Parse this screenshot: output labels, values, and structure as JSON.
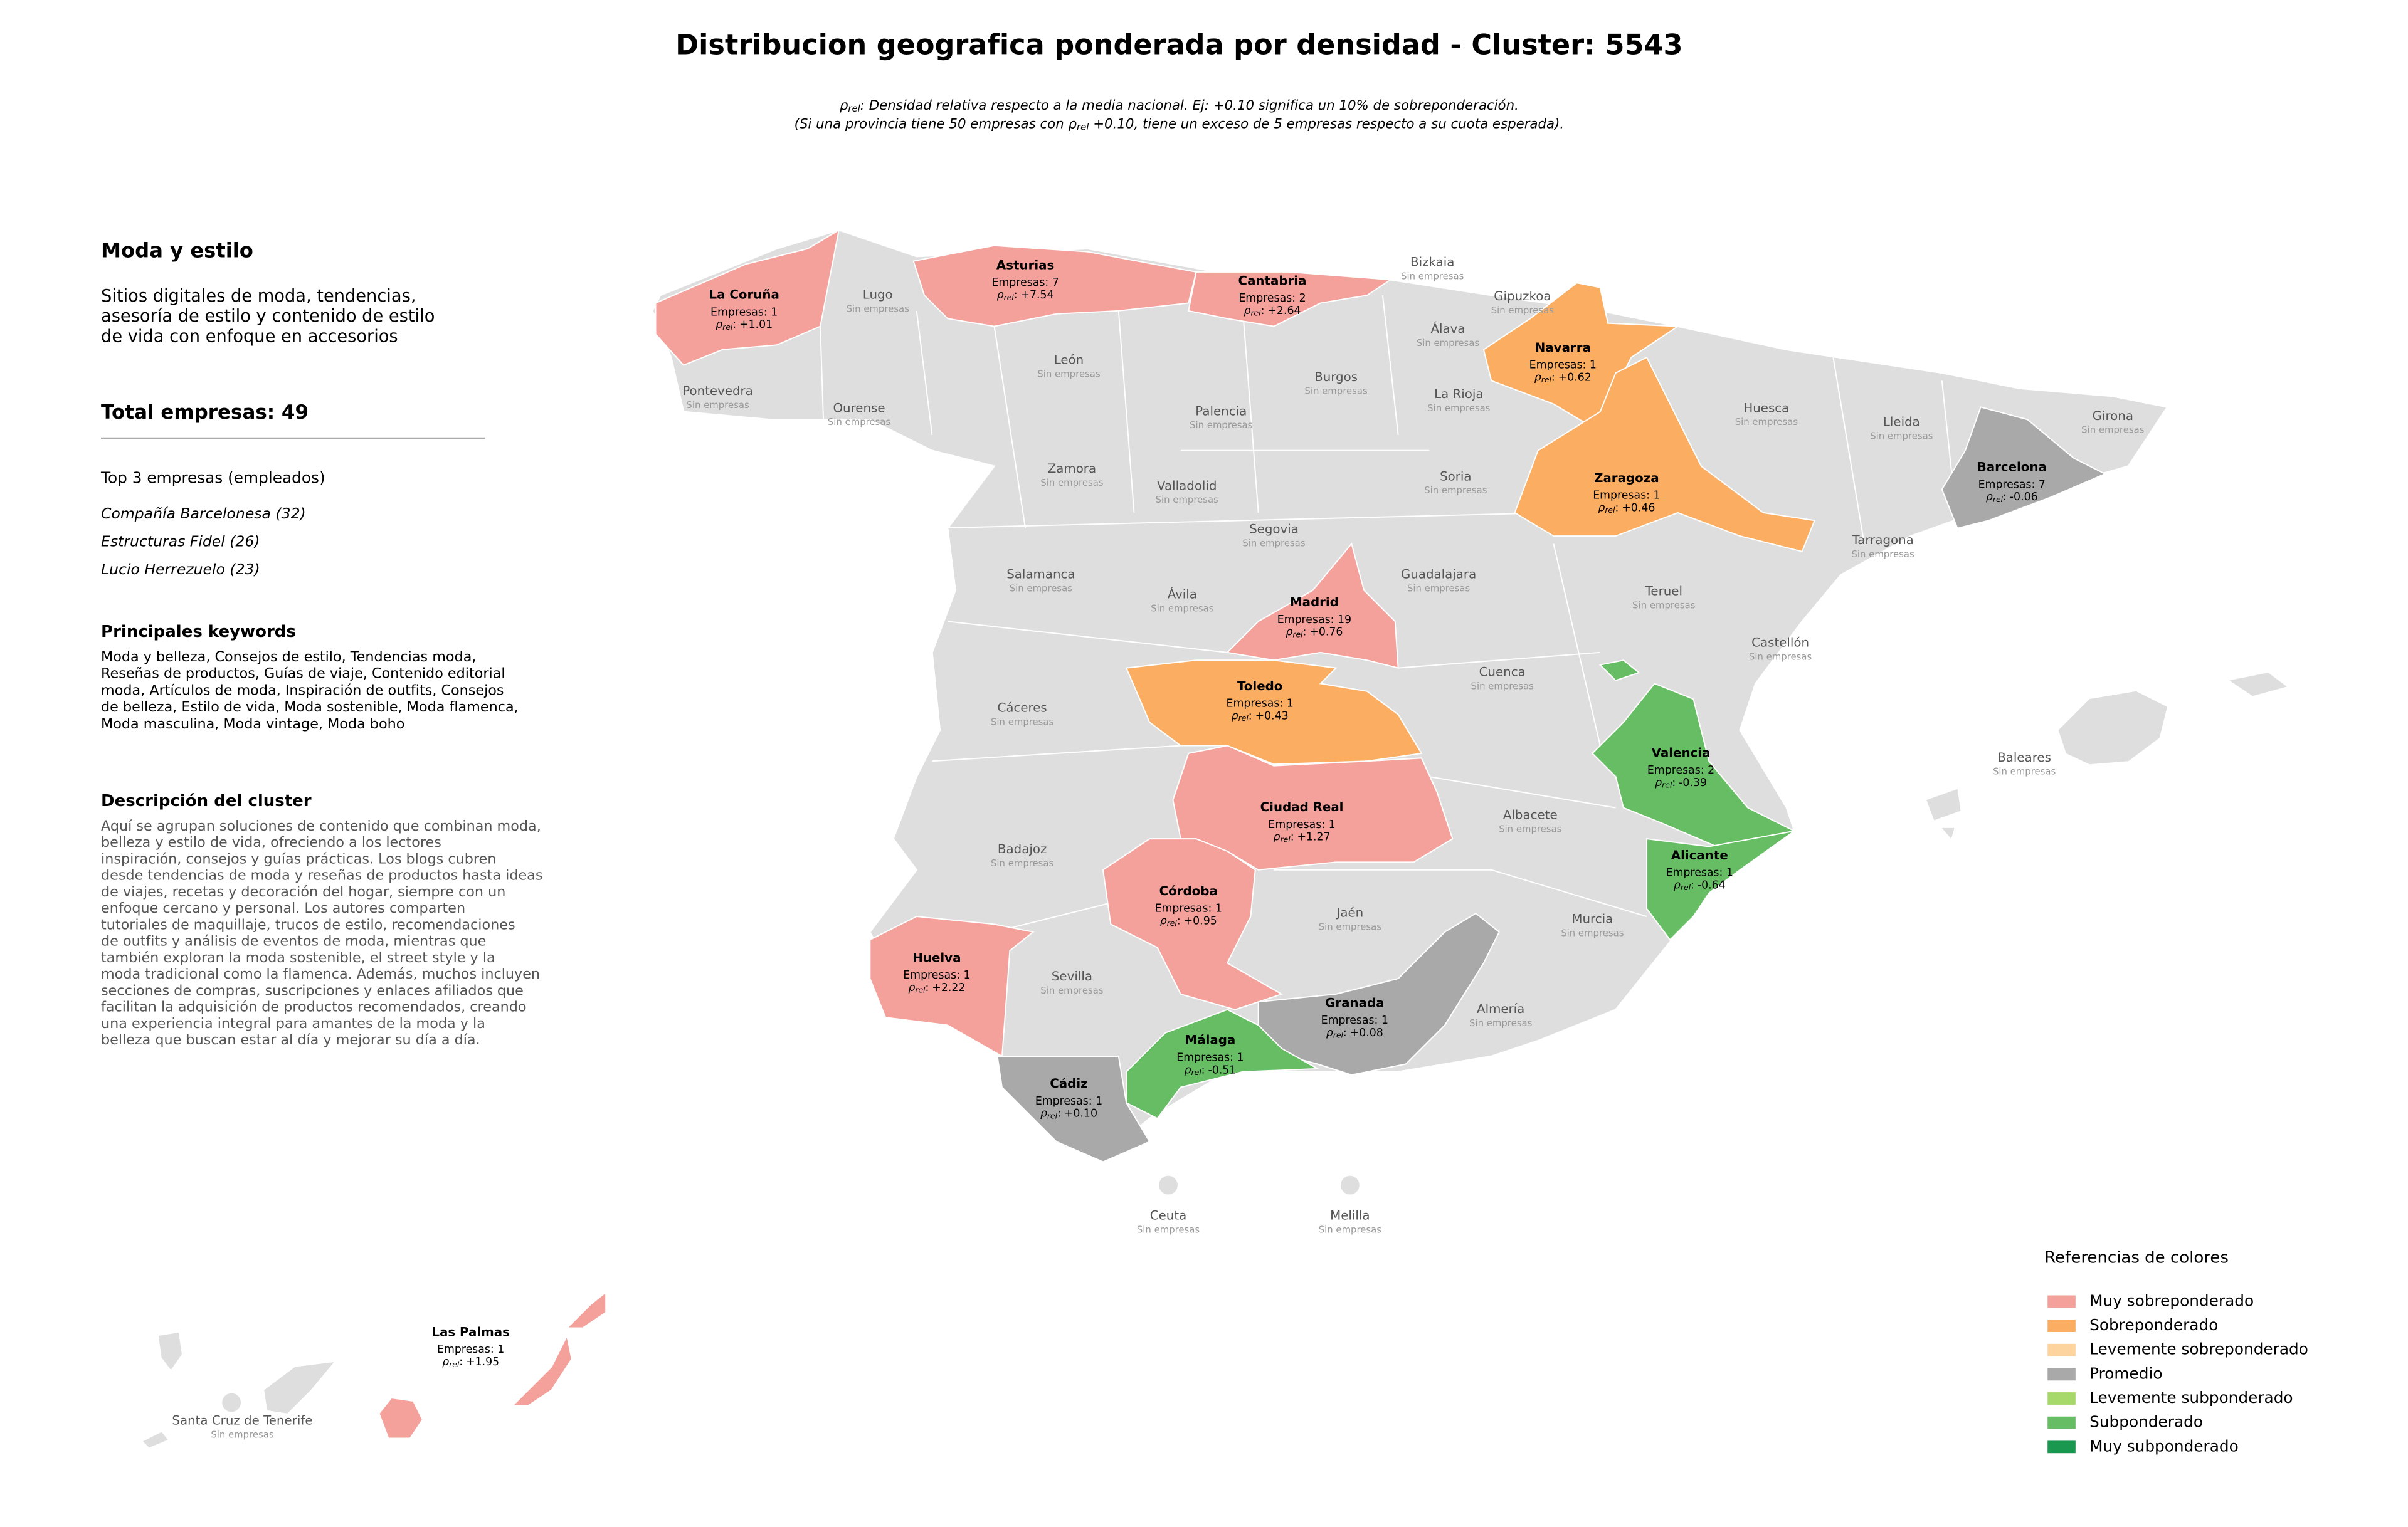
{
  "title": "Distribucion geografica ponderada por densidad - Cluster: 5543",
  "subtitle": [
    {
      "pre": "ρ",
      "sub": "rel",
      "post": ": Densidad relativa respecto a la media nacional. Ej: +0.10 significa un 10% de sobreponderación."
    },
    {
      "pre": "(Si una provincia tiene 50 empresas con ρ",
      "sub": "rel",
      "post": " +0.10, tiene un exceso de 5 empresas respecto a su cuota esperada)."
    }
  ],
  "sidebar": {
    "heading": "Moda y estilo",
    "description": [
      "Sitios digitales de moda, tendencias,",
      "asesoría de estilo y contenido de estilo",
      "de vida con enfoque en accesorios"
    ],
    "total": "Total empresas: 49",
    "top_heading": "Top 3 empresas (empleados)",
    "top": [
      "Compañía Barcelonesa (32)",
      "Estructuras Fidel (26)",
      "Lucio Herrezuelo (23)"
    ],
    "keywords_heading": "Principales keywords",
    "keywords": [
      "Moda y belleza, Consejos de estilo, Tendencias moda,",
      "Reseñas de productos, Guías de viaje, Contenido editorial",
      "moda, Artículos de moda, Inspiración de outfits, Consejos",
      "de belleza, Estilo de vida, Moda sostenible, Moda flamenca,",
      "Moda masculina, Moda vintage, Moda boho"
    ],
    "cluster_heading": "Descripción del cluster",
    "cluster_description": [
      "Aquí se agrupan soluciones de contenido que combinan moda,",
      "belleza y estilo de vida, ofreciendo a los lectores",
      "inspiración, consejos y guías prácticas. Los blogs cubren",
      "desde tendencias de moda y reseñas de productos hasta ideas",
      "de viajes, recetas y decoración del hogar, siempre con un",
      "enfoque cercano y personal. Los autores comparten",
      "tutoriales de maquillaje, trucos de estilo, recomendaciones",
      "de outfits y análisis de eventos de moda, mientras que",
      "también exploran la moda sostenible, el street style y la",
      "moda tradicional como la flamenca. Además, muchos incluyen",
      "secciones de compras, suscripciones y enlaces afiliados que",
      "facilitan la adquisición de productos recomendados, creando",
      "una experiencia integral para amantes de la moda y la",
      "belleza que buscan estar al día y mejorar su día a día."
    ]
  },
  "map": {
    "rho_symbol": "ρ",
    "rho_subscript": "rel",
    "rho_separator": ":",
    "no_data_label": "Sin empresas",
    "provinces": [
      {
        "name": "La Coruña",
        "companies": "Empresas: 1",
        "rho": "+1.01",
        "level": 0
      },
      {
        "name": "Asturias",
        "companies": "Empresas: 7",
        "rho": "+7.54",
        "level": 0
      },
      {
        "name": "Cantabria",
        "companies": "Empresas: 2",
        "rho": "+2.64",
        "level": 0
      },
      {
        "name": "Navarra",
        "companies": "Empresas: 1",
        "rho": "+0.62",
        "level": 1
      },
      {
        "name": "Zaragoza",
        "companies": "Empresas: 1",
        "rho": "+0.46",
        "level": 1
      },
      {
        "name": "Barcelona",
        "companies": "Empresas: 7",
        "rho": "-0.06",
        "level": 3
      },
      {
        "name": "Madrid",
        "companies": "Empresas: 19",
        "rho": "+0.76",
        "level": 0
      },
      {
        "name": "Toledo",
        "companies": "Empresas: 1",
        "rho": "+0.43",
        "level": 1
      },
      {
        "name": "Ciudad Real",
        "companies": "Empresas: 1",
        "rho": "+1.27",
        "level": 0
      },
      {
        "name": "Córdoba",
        "companies": "Empresas: 1",
        "rho": "+0.95",
        "level": 0
      },
      {
        "name": "Huelva",
        "companies": "Empresas: 1",
        "rho": "+2.22",
        "level": 0
      },
      {
        "name": "Valencia",
        "companies": "Empresas: 2",
        "rho": "-0.39",
        "level": 5
      },
      {
        "name": "Alicante",
        "companies": "Empresas: 1",
        "rho": "-0.64",
        "level": 5
      },
      {
        "name": "Granada",
        "companies": "Empresas: 1",
        "rho": "+0.08",
        "level": 3
      },
      {
        "name": "Málaga",
        "companies": "Empresas: 1",
        "rho": "-0.51",
        "level": 5
      },
      {
        "name": "Cádiz",
        "companies": "Empresas: 1",
        "rho": "+0.10",
        "level": 3
      },
      {
        "name": "Las Palmas",
        "companies": "Empresas: 1",
        "rho": "+1.95",
        "level": 0
      }
    ],
    "empty_provinces": [
      "Lugo",
      "Pontevedra",
      "Ourense",
      "León",
      "Palencia",
      "Burgos",
      "Bizkaia",
      "Gipuzkoa",
      "Álava",
      "La Rioja",
      "Huesca",
      "Lleida",
      "Girona",
      "Zamora",
      "Valladolid",
      "Soria",
      "Tarragona",
      "Salamanca",
      "Segovia",
      "Ávila",
      "Guadalajara",
      "Teruel",
      "Castellón",
      "Cáceres",
      "Cuenca",
      "Baleares",
      "Badajoz",
      "Albacete",
      "Sevilla",
      "Jaén",
      "Murcia",
      "Almería",
      "Ceuta",
      "Melilla",
      "Santa Cruz de Tenerife"
    ]
  },
  "legend": {
    "title": "Referencias de colores",
    "items": [
      {
        "name": "Muy sobreponderado",
        "color": "#f4a09b"
      },
      {
        "name": "Sobreponderado",
        "color": "#fbad62"
      },
      {
        "name": "Levemente sobreponderado",
        "color": "#fdd49e"
      },
      {
        "name": "Promedio",
        "color": "#a9a9a9"
      },
      {
        "name": "Levemente subponderado",
        "color": "#a6d96a"
      },
      {
        "name": "Subponderado",
        "color": "#66bd63"
      },
      {
        "name": "Muy subponderado",
        "color": "#1a9850"
      }
    ]
  }
}
